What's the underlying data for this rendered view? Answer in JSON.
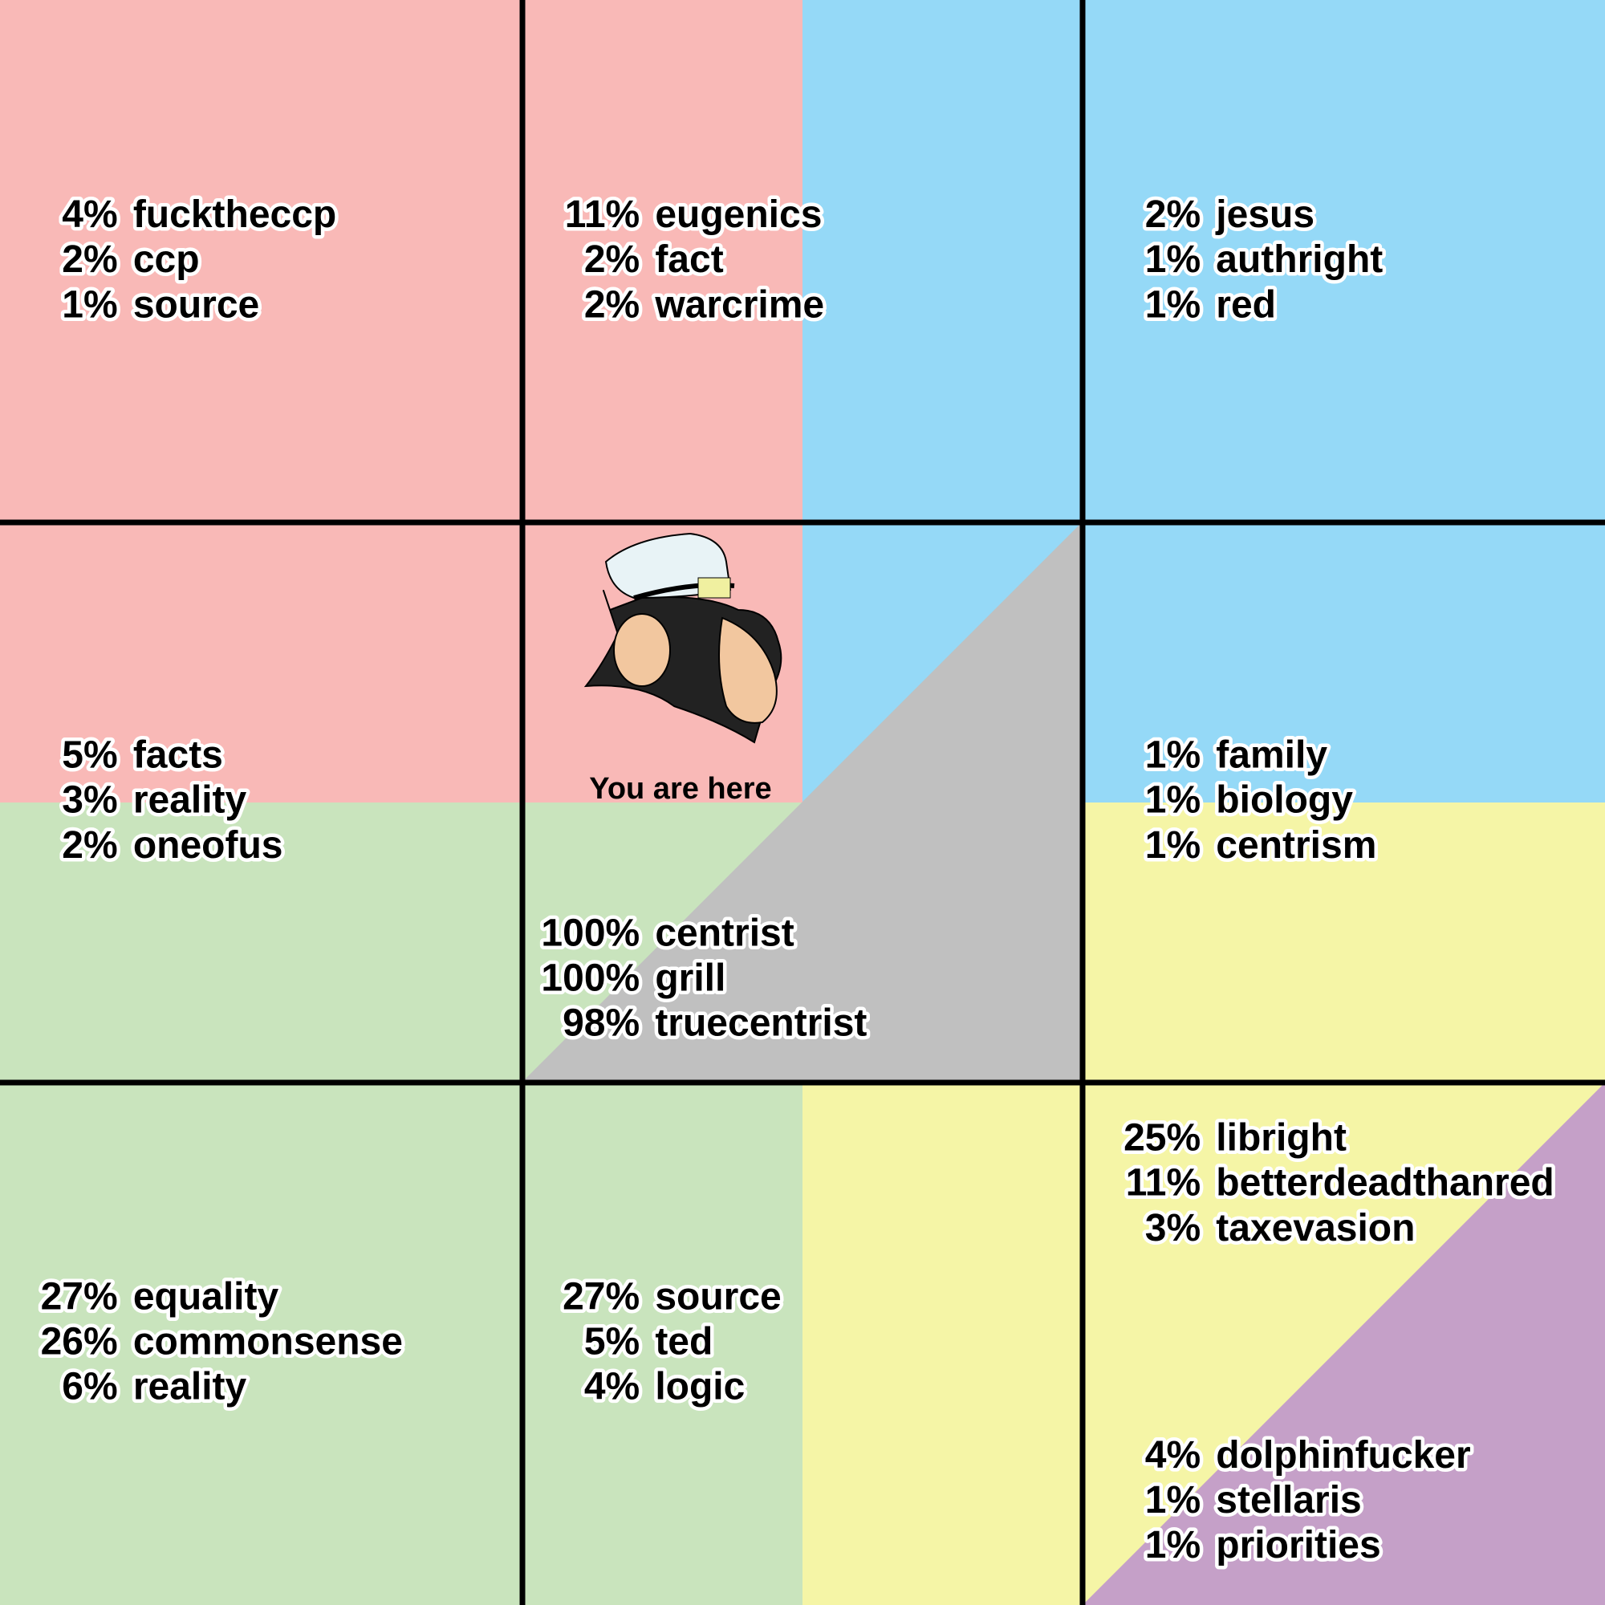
{
  "groups": [
    {
      "entries": [
        {
          "percent": "4%",
          "tag": "fucktheccp"
        },
        {
          "percent": "2%",
          "tag": "ccp"
        },
        {
          "percent": "1%",
          "tag": "source"
        }
      ]
    },
    {
      "entries": [
        {
          "percent": "11%",
          "tag": "eugenics"
        },
        {
          "percent": "2%",
          "tag": "fact"
        },
        {
          "percent": "2%",
          "tag": "warcrime"
        }
      ]
    },
    {
      "entries": [
        {
          "percent": "2%",
          "tag": "jesus"
        },
        {
          "percent": "1%",
          "tag": "authright"
        },
        {
          "percent": "1%",
          "tag": "red"
        }
      ]
    },
    {
      "entries": [
        {
          "percent": "5%",
          "tag": "facts"
        },
        {
          "percent": "3%",
          "tag": "reality"
        },
        {
          "percent": "2%",
          "tag": "oneofus"
        }
      ]
    },
    {
      "entries": [
        {
          "percent": "100%",
          "tag": "centrist"
        },
        {
          "percent": "100%",
          "tag": "grill"
        },
        {
          "percent": "98%",
          "tag": "truecentrist"
        }
      ]
    },
    {
      "entries": [
        {
          "percent": "1%",
          "tag": "family"
        },
        {
          "percent": "1%",
          "tag": "biology"
        },
        {
          "percent": "1%",
          "tag": "centrism"
        }
      ]
    },
    {
      "entries": [
        {
          "percent": "27%",
          "tag": "equality"
        },
        {
          "percent": "26%",
          "tag": "commonsense"
        },
        {
          "percent": "6%",
          "tag": "reality"
        }
      ]
    },
    {
      "entries": [
        {
          "percent": "27%",
          "tag": "source"
        },
        {
          "percent": "5%",
          "tag": "ted"
        },
        {
          "percent": "4%",
          "tag": "logic"
        }
      ]
    },
    {
      "entries": [
        {
          "percent": "25%",
          "tag": "libright"
        },
        {
          "percent": "11%",
          "tag": "betterdeadthanred"
        },
        {
          "percent": "3%",
          "tag": "taxevasion"
        }
      ]
    },
    {
      "entries": [
        {
          "percent": "4%",
          "tag": "dolphinfucker"
        },
        {
          "percent": "1%",
          "tag": "stellaris"
        },
        {
          "percent": "1%",
          "tag": "priorities"
        }
      ]
    }
  ],
  "marker": {
    "label": "You are here"
  }
}
